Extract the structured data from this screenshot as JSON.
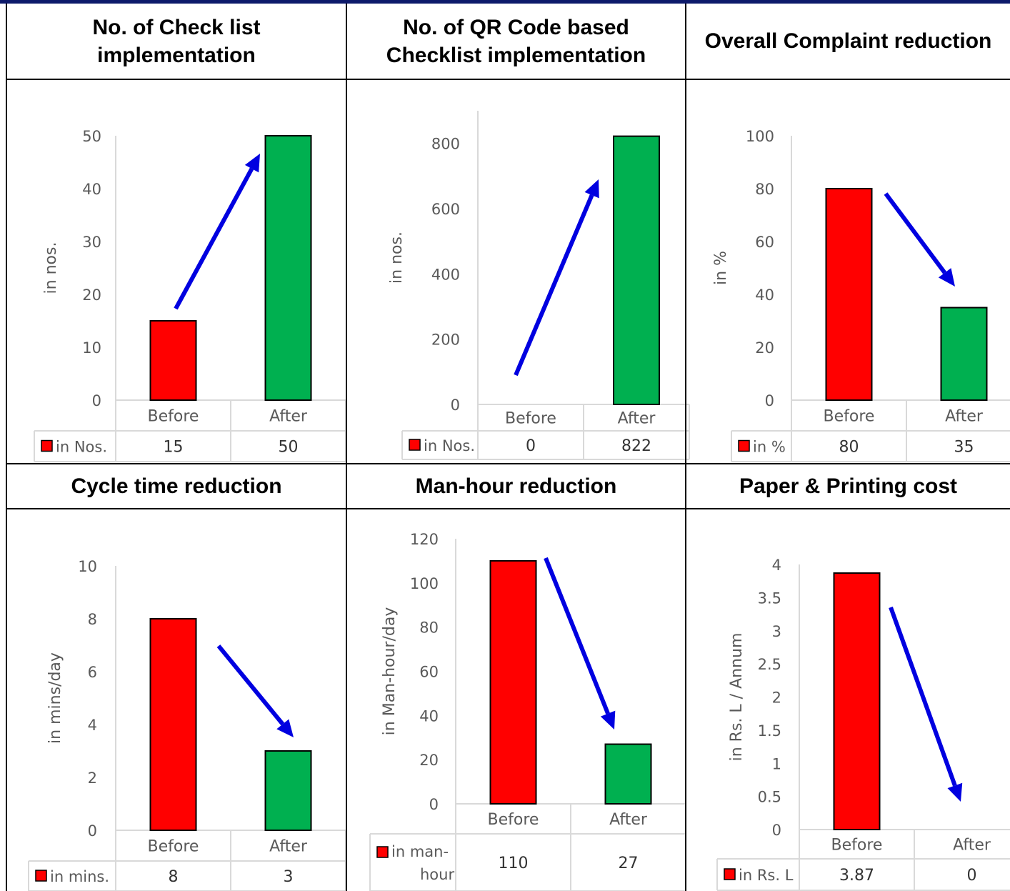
{
  "colors": {
    "before": "#ff0000",
    "after": "#00b050",
    "arrow": "#0000e0",
    "axis_text": "#595959",
    "grid": "#d9d9d9"
  },
  "chart_data": [
    {
      "type": "bar",
      "title": "No. of Check list\nimplementation",
      "categories": [
        "Before",
        "After"
      ],
      "values": [
        15,
        50
      ],
      "value_labels": [
        "15",
        "50"
      ],
      "series_name": "in Nos.",
      "ylabel": "in nos.",
      "ylim": [
        0,
        50
      ],
      "yticks": [
        "0",
        "10",
        "20",
        "30",
        "40",
        "50"
      ],
      "trend": "up"
    },
    {
      "type": "bar",
      "title": "No. of QR Code based\nChecklist implementation",
      "categories": [
        "Before",
        "After"
      ],
      "values": [
        0,
        822
      ],
      "value_labels": [
        "0",
        "822"
      ],
      "series_name": "in Nos.",
      "ylabel": "in nos.",
      "ylim": [
        0,
        900
      ],
      "yticks": [
        "0",
        "200",
        "400",
        "600",
        "800"
      ],
      "trend": "up"
    },
    {
      "type": "bar",
      "title": "Overall Complaint reduction",
      "categories": [
        "Before",
        "After"
      ],
      "values": [
        80,
        35
      ],
      "value_labels": [
        "80",
        "35"
      ],
      "series_name": "in %",
      "ylabel": "in %",
      "ylim": [
        0,
        100
      ],
      "yticks": [
        "0",
        "20",
        "40",
        "60",
        "80",
        "100"
      ],
      "trend": "down"
    },
    {
      "type": "bar",
      "title": "Cycle time reduction",
      "categories": [
        "Before",
        "After"
      ],
      "values": [
        8,
        3
      ],
      "value_labels": [
        "8",
        "3"
      ],
      "series_name": "in mins.",
      "ylabel": "in mins/day",
      "ylim": [
        0,
        10
      ],
      "yticks": [
        "0",
        "2",
        "4",
        "6",
        "8",
        "10"
      ],
      "trend": "down"
    },
    {
      "type": "bar",
      "title": "Man-hour reduction",
      "categories": [
        "Before",
        "After"
      ],
      "values": [
        110,
        27
      ],
      "value_labels": [
        "110",
        "27"
      ],
      "series_name": "in man-hour",
      "ylabel": "in Man-hour/day",
      "ylim": [
        0,
        120
      ],
      "yticks": [
        "0",
        "20",
        "40",
        "60",
        "80",
        "100",
        "120"
      ],
      "trend": "down"
    },
    {
      "type": "bar",
      "title": "Paper & Printing cost",
      "categories": [
        "Before",
        "After"
      ],
      "values": [
        3.87,
        0
      ],
      "value_labels": [
        "3.87",
        "0"
      ],
      "series_name": "in Rs. L",
      "ylabel": "in Rs. L / Annum",
      "ylim": [
        0,
        4
      ],
      "yticks": [
        "0",
        "0.5",
        "1",
        "1.5",
        "2",
        "2.5",
        "3",
        "3.5",
        "4"
      ],
      "trend": "down"
    }
  ]
}
